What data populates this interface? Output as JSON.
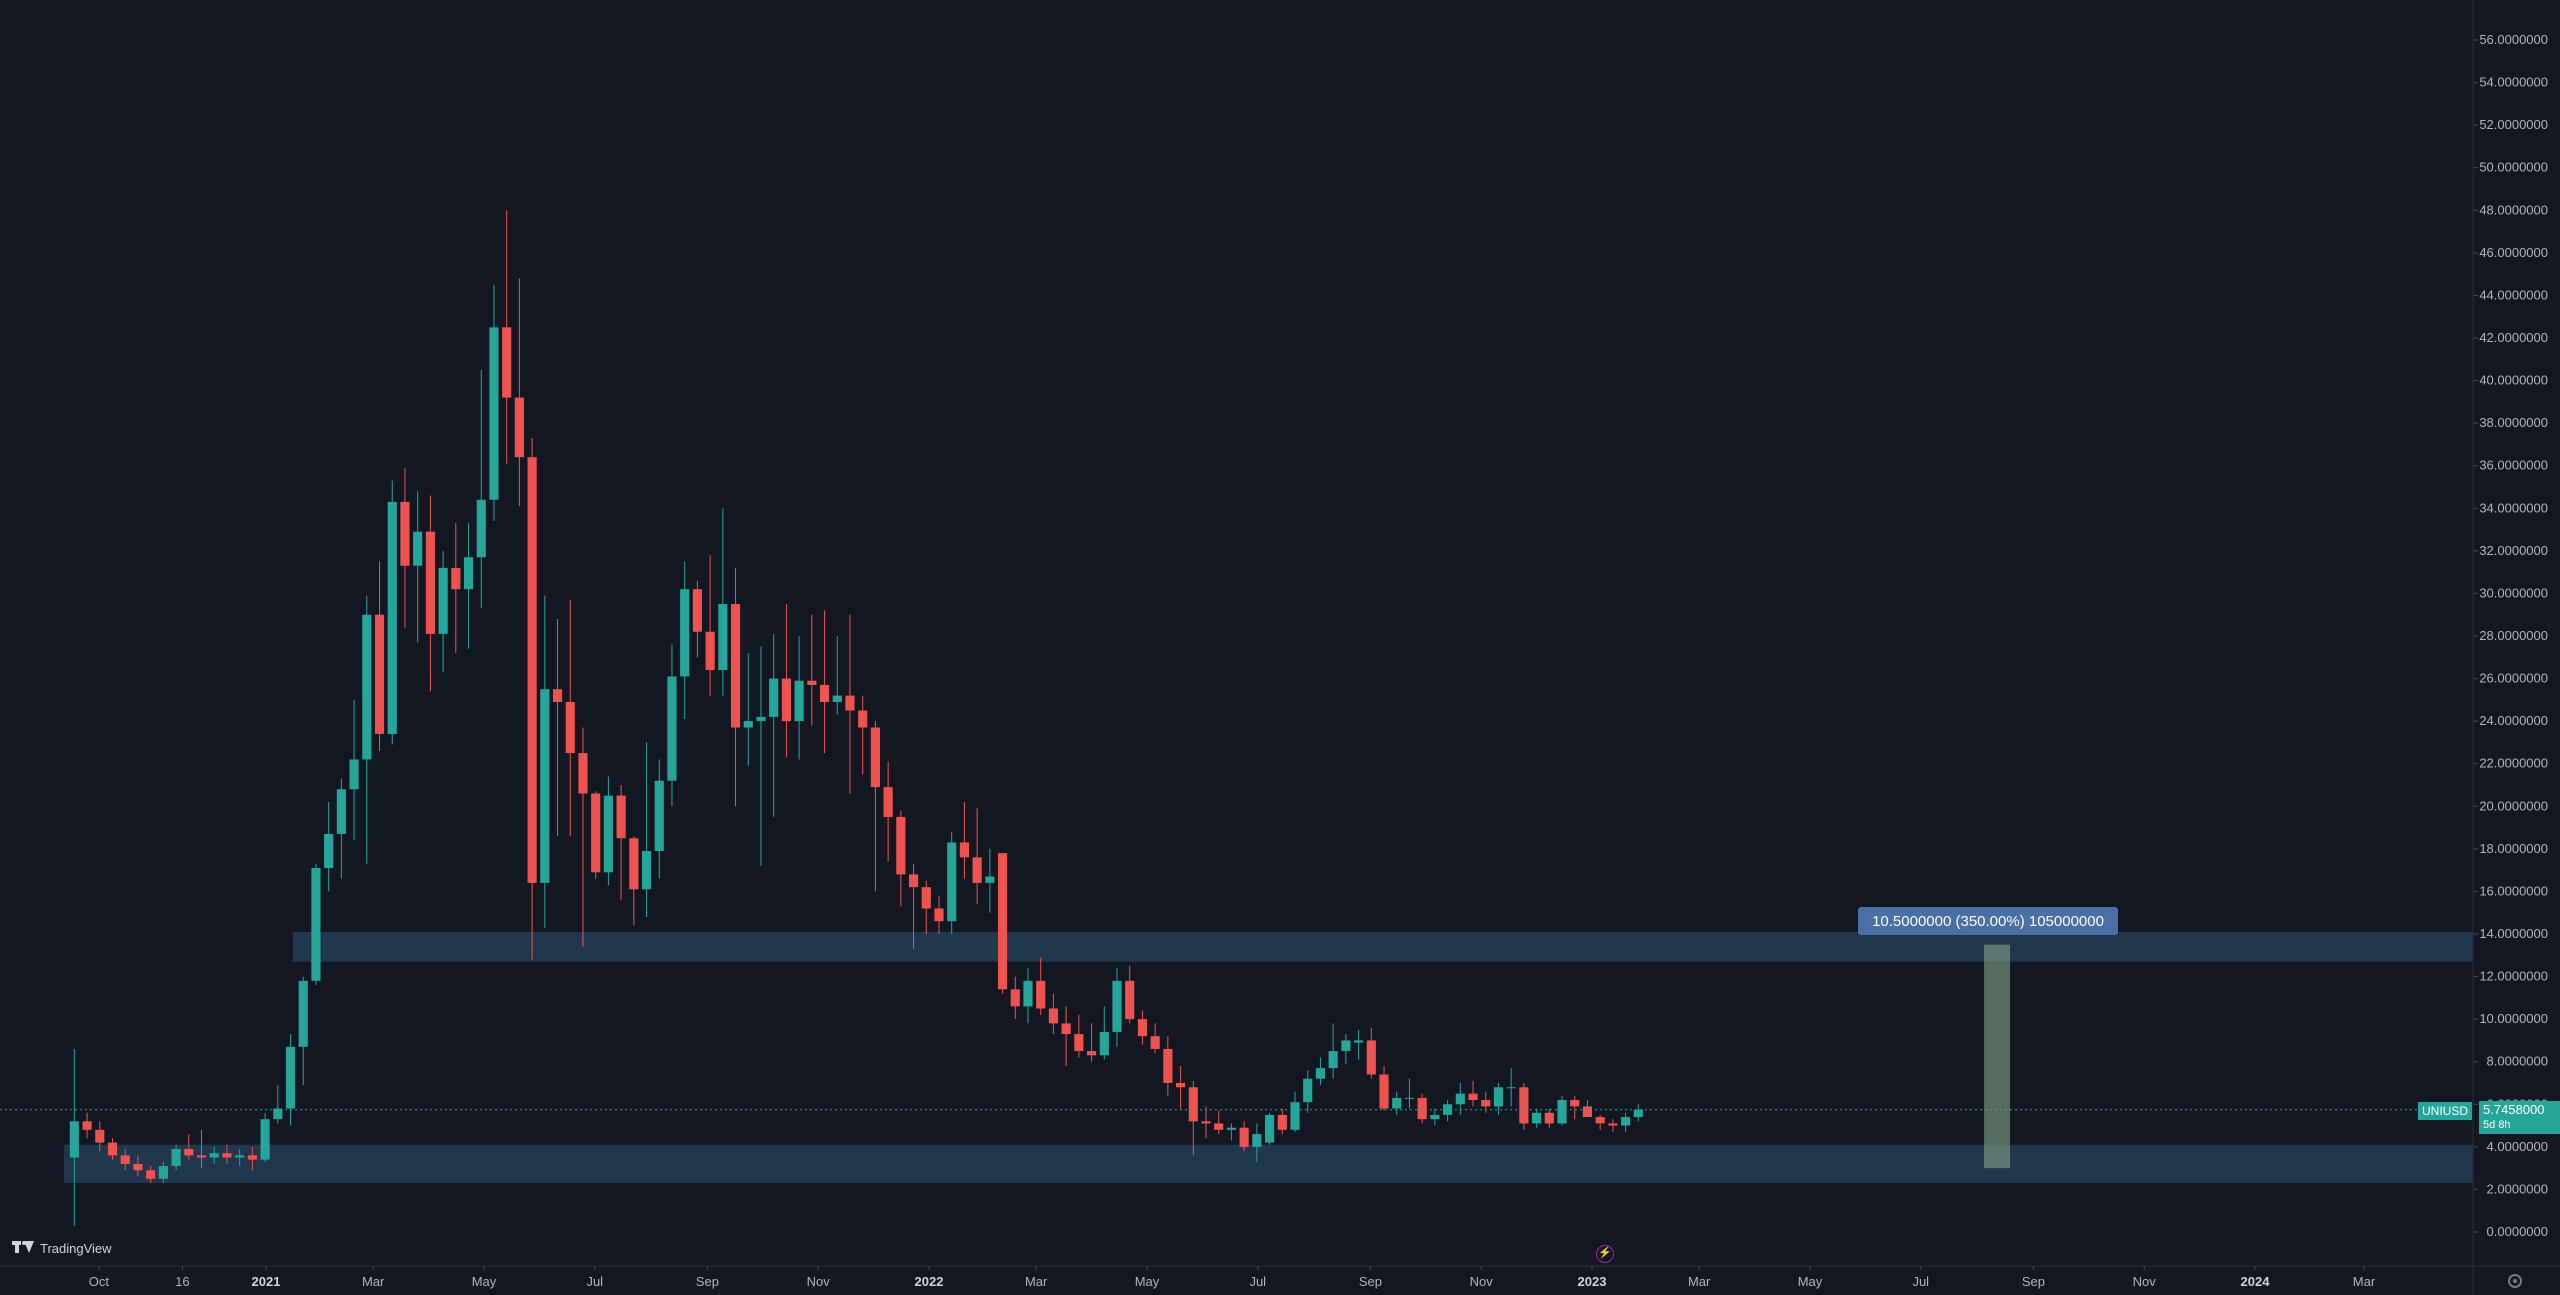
{
  "chart_data": {
    "type": "candlestick",
    "symbol": "UNIUSD",
    "ylim": [
      -1.5,
      58
    ],
    "y_ticks": [
      "0.0000000",
      "2.0000000",
      "4.0000000",
      "6.0000000",
      "8.0000000",
      "10.0000000",
      "12.0000000",
      "14.0000000",
      "16.0000000",
      "18.0000000",
      "20.0000000",
      "22.0000000",
      "24.0000000",
      "26.0000000",
      "28.0000000",
      "30.0000000",
      "32.0000000",
      "34.0000000",
      "36.0000000",
      "38.0000000",
      "40.0000000",
      "42.0000000",
      "44.0000000",
      "46.0000000",
      "48.0000000",
      "50.0000000",
      "52.0000000",
      "54.0000000",
      "56.0000000"
    ],
    "x_ticks": [
      {
        "label": "Oct",
        "x": "2020-10-01",
        "bold": false
      },
      {
        "label": "16",
        "x": "2020-11-16",
        "bold": false
      },
      {
        "label": "2021",
        "x": "2021-01-01",
        "bold": true
      },
      {
        "label": "Mar",
        "x": "2021-03-01",
        "bold": false
      },
      {
        "label": "May",
        "x": "2021-05-01",
        "bold": false
      },
      {
        "label": "Jul",
        "x": "2021-07-01",
        "bold": false
      },
      {
        "label": "Sep",
        "x": "2021-09-01",
        "bold": false
      },
      {
        "label": "Nov",
        "x": "2021-11-01",
        "bold": false
      },
      {
        "label": "2022",
        "x": "2022-01-01",
        "bold": true
      },
      {
        "label": "Mar",
        "x": "2022-03-01",
        "bold": false
      },
      {
        "label": "May",
        "x": "2022-05-01",
        "bold": false
      },
      {
        "label": "Jul",
        "x": "2022-07-01",
        "bold": false
      },
      {
        "label": "Sep",
        "x": "2022-09-01",
        "bold": false
      },
      {
        "label": "Nov",
        "x": "2022-11-01",
        "bold": false
      },
      {
        "label": "2023",
        "x": "2023-01-01",
        "bold": true
      },
      {
        "label": "Mar",
        "x": "2023-03-01",
        "bold": false
      },
      {
        "label": "May",
        "x": "2023-05-01",
        "bold": false
      },
      {
        "label": "Jul",
        "x": "2023-07-01",
        "bold": false
      },
      {
        "label": "Sep",
        "x": "2023-09-01",
        "bold": false
      },
      {
        "label": "Nov",
        "x": "2023-11-01",
        "bold": false
      },
      {
        "label": "2024",
        "x": "2024-01-01",
        "bold": true
      },
      {
        "label": "Mar",
        "x": "2024-03-01",
        "bold": false
      }
    ],
    "candles": [
      {
        "x": "2020-09-14",
        "o": 3.5,
        "h": 8.6,
        "l": 0.3,
        "c": 5.2
      },
      {
        "x": "2020-09-21",
        "o": 5.2,
        "h": 5.6,
        "l": 4.4,
        "c": 4.8
      },
      {
        "x": "2020-09-28",
        "o": 4.8,
        "h": 5.2,
        "l": 3.8,
        "c": 4.2
      },
      {
        "x": "2020-10-05",
        "o": 4.2,
        "h": 4.4,
        "l": 3.4,
        "c": 3.6
      },
      {
        "x": "2020-10-12",
        "o": 3.6,
        "h": 3.9,
        "l": 2.9,
        "c": 3.2
      },
      {
        "x": "2020-10-19",
        "o": 3.2,
        "h": 3.6,
        "l": 2.6,
        "c": 2.9
      },
      {
        "x": "2020-10-26",
        "o": 2.9,
        "h": 3.1,
        "l": 2.3,
        "c": 2.5
      },
      {
        "x": "2020-11-02",
        "o": 2.5,
        "h": 3.3,
        "l": 2.3,
        "c": 3.1
      },
      {
        "x": "2020-11-09",
        "o": 3.1,
        "h": 4.1,
        "l": 2.9,
        "c": 3.9
      },
      {
        "x": "2020-11-16",
        "o": 3.9,
        "h": 4.6,
        "l": 3.4,
        "c": 3.6
      },
      {
        "x": "2020-11-23",
        "o": 3.6,
        "h": 4.8,
        "l": 3.0,
        "c": 3.5
      },
      {
        "x": "2020-11-30",
        "o": 3.5,
        "h": 4.0,
        "l": 3.2,
        "c": 3.7
      },
      {
        "x": "2020-12-07",
        "o": 3.7,
        "h": 4.1,
        "l": 3.2,
        "c": 3.5
      },
      {
        "x": "2020-12-14",
        "o": 3.5,
        "h": 3.9,
        "l": 3.1,
        "c": 3.6
      },
      {
        "x": "2020-12-21",
        "o": 3.6,
        "h": 4.0,
        "l": 2.9,
        "c": 3.4
      },
      {
        "x": "2020-12-28",
        "o": 3.4,
        "h": 5.6,
        "l": 3.3,
        "c": 5.3
      },
      {
        "x": "2021-01-04",
        "o": 5.3,
        "h": 6.9,
        "l": 5.1,
        "c": 5.8
      },
      {
        "x": "2021-01-11",
        "o": 5.8,
        "h": 9.3,
        "l": 5.0,
        "c": 8.7
      },
      {
        "x": "2021-01-18",
        "o": 8.7,
        "h": 12.0,
        "l": 6.9,
        "c": 11.8
      },
      {
        "x": "2021-01-25",
        "o": 11.8,
        "h": 17.3,
        "l": 11.6,
        "c": 17.1
      },
      {
        "x": "2021-02-01",
        "o": 17.1,
        "h": 20.2,
        "l": 16.0,
        "c": 18.7
      },
      {
        "x": "2021-02-08",
        "o": 18.7,
        "h": 21.3,
        "l": 16.6,
        "c": 20.8
      },
      {
        "x": "2021-02-15",
        "o": 20.8,
        "h": 25.0,
        "l": 18.4,
        "c": 22.2
      },
      {
        "x": "2021-02-22",
        "o": 22.2,
        "h": 29.9,
        "l": 17.3,
        "c": 29.0
      },
      {
        "x": "2021-03-01",
        "o": 29.0,
        "h": 31.5,
        "l": 22.6,
        "c": 23.4
      },
      {
        "x": "2021-03-08",
        "o": 23.4,
        "h": 35.3,
        "l": 22.9,
        "c": 34.3
      },
      {
        "x": "2021-03-15",
        "o": 34.3,
        "h": 35.9,
        "l": 28.4,
        "c": 31.3
      },
      {
        "x": "2021-03-22",
        "o": 31.3,
        "h": 34.8,
        "l": 27.7,
        "c": 32.9
      },
      {
        "x": "2021-03-29",
        "o": 32.9,
        "h": 34.6,
        "l": 25.4,
        "c": 28.1
      },
      {
        "x": "2021-04-05",
        "o": 28.1,
        "h": 32.0,
        "l": 26.3,
        "c": 31.2
      },
      {
        "x": "2021-04-12",
        "o": 31.2,
        "h": 33.3,
        "l": 27.2,
        "c": 30.2
      },
      {
        "x": "2021-04-19",
        "o": 30.2,
        "h": 33.3,
        "l": 27.4,
        "c": 31.7
      },
      {
        "x": "2021-04-26",
        "o": 31.7,
        "h": 40.5,
        "l": 29.3,
        "c": 34.4
      },
      {
        "x": "2021-05-03",
        "o": 34.4,
        "h": 44.5,
        "l": 33.4,
        "c": 42.5
      },
      {
        "x": "2021-05-10",
        "o": 42.5,
        "h": 48.0,
        "l": 36.1,
        "c": 39.2
      },
      {
        "x": "2021-05-17",
        "o": 39.2,
        "h": 44.8,
        "l": 34.1,
        "c": 36.4
      },
      {
        "x": "2021-05-24",
        "o": 36.4,
        "h": 37.3,
        "l": 12.8,
        "c": 16.4
      },
      {
        "x": "2021-05-31",
        "o": 16.4,
        "h": 29.9,
        "l": 14.3,
        "c": 25.5
      },
      {
        "x": "2021-06-07",
        "o": 25.5,
        "h": 28.8,
        "l": 18.6,
        "c": 24.9
      },
      {
        "x": "2021-06-14",
        "o": 24.9,
        "h": 29.7,
        "l": 18.6,
        "c": 22.5
      },
      {
        "x": "2021-06-21",
        "o": 22.5,
        "h": 23.7,
        "l": 13.4,
        "c": 20.6
      },
      {
        "x": "2021-06-28",
        "o": 20.6,
        "h": 20.7,
        "l": 16.6,
        "c": 16.9
      },
      {
        "x": "2021-07-05",
        "o": 16.9,
        "h": 21.4,
        "l": 16.3,
        "c": 20.5
      },
      {
        "x": "2021-07-12",
        "o": 20.5,
        "h": 21.0,
        "l": 15.6,
        "c": 18.5
      },
      {
        "x": "2021-07-19",
        "o": 18.5,
        "h": 18.6,
        "l": 14.4,
        "c": 16.1
      },
      {
        "x": "2021-07-26",
        "o": 16.1,
        "h": 23.0,
        "l": 14.8,
        "c": 17.9
      },
      {
        "x": "2021-08-02",
        "o": 17.9,
        "h": 22.2,
        "l": 16.6,
        "c": 21.2
      },
      {
        "x": "2021-08-09",
        "o": 21.2,
        "h": 27.6,
        "l": 20.0,
        "c": 26.1
      },
      {
        "x": "2021-08-16",
        "o": 26.1,
        "h": 31.5,
        "l": 24.1,
        "c": 30.2
      },
      {
        "x": "2021-08-23",
        "o": 30.2,
        "h": 30.6,
        "l": 27.0,
        "c": 28.2
      },
      {
        "x": "2021-08-30",
        "o": 28.2,
        "h": 31.8,
        "l": 25.2,
        "c": 26.4
      },
      {
        "x": "2021-09-06",
        "o": 26.4,
        "h": 34.0,
        "l": 25.2,
        "c": 29.5
      },
      {
        "x": "2021-09-13",
        "o": 29.5,
        "h": 31.2,
        "l": 20.0,
        "c": 23.7
      },
      {
        "x": "2021-09-20",
        "o": 23.7,
        "h": 27.2,
        "l": 21.9,
        "c": 24.0
      },
      {
        "x": "2021-09-27",
        "o": 24.0,
        "h": 27.5,
        "l": 17.2,
        "c": 24.2
      },
      {
        "x": "2021-10-04",
        "o": 24.2,
        "h": 28.1,
        "l": 19.5,
        "c": 26.0
      },
      {
        "x": "2021-10-11",
        "o": 26.0,
        "h": 29.5,
        "l": 22.3,
        "c": 24.0
      },
      {
        "x": "2021-10-18",
        "o": 24.0,
        "h": 28.0,
        "l": 22.2,
        "c": 25.9
      },
      {
        "x": "2021-10-25",
        "o": 25.9,
        "h": 29.0,
        "l": 23.8,
        "c": 25.7
      },
      {
        "x": "2021-11-01",
        "o": 25.7,
        "h": 29.2,
        "l": 22.5,
        "c": 24.9
      },
      {
        "x": "2021-11-08",
        "o": 24.9,
        "h": 28.0,
        "l": 24.3,
        "c": 25.2
      },
      {
        "x": "2021-11-15",
        "o": 25.2,
        "h": 29.0,
        "l": 20.6,
        "c": 24.5
      },
      {
        "x": "2021-11-22",
        "o": 24.5,
        "h": 25.2,
        "l": 21.5,
        "c": 23.7
      },
      {
        "x": "2021-11-29",
        "o": 23.7,
        "h": 24.0,
        "l": 16.0,
        "c": 20.9
      },
      {
        "x": "2021-12-06",
        "o": 20.9,
        "h": 22.1,
        "l": 17.4,
        "c": 19.5
      },
      {
        "x": "2021-12-13",
        "o": 19.5,
        "h": 19.8,
        "l": 15.3,
        "c": 16.8
      },
      {
        "x": "2021-12-20",
        "o": 16.8,
        "h": 17.3,
        "l": 13.3,
        "c": 16.2
      },
      {
        "x": "2021-12-27",
        "o": 16.2,
        "h": 16.5,
        "l": 14.0,
        "c": 15.2
      },
      {
        "x": "2022-01-03",
        "o": 15.2,
        "h": 15.8,
        "l": 14.0,
        "c": 14.6
      },
      {
        "x": "2022-01-10",
        "o": 14.6,
        "h": 18.8,
        "l": 14.0,
        "c": 18.3
      },
      {
        "x": "2022-01-17",
        "o": 18.3,
        "h": 20.2,
        "l": 16.6,
        "c": 17.6
      },
      {
        "x": "2022-01-24",
        "o": 17.6,
        "h": 19.9,
        "l": 15.4,
        "c": 16.4
      },
      {
        "x": "2022-01-31",
        "o": 16.4,
        "h": 18.0,
        "l": 15.0,
        "c": 16.7
      },
      {
        "x": "2022-02-07",
        "o": 17.8,
        "h": 17.8,
        "l": 11.2,
        "c": 11.4
      },
      {
        "x": "2022-02-14",
        "o": 11.4,
        "h": 12.0,
        "l": 10.0,
        "c": 10.6
      },
      {
        "x": "2022-02-21",
        "o": 10.6,
        "h": 12.4,
        "l": 9.8,
        "c": 11.8
      },
      {
        "x": "2022-02-28",
        "o": 11.8,
        "h": 12.9,
        "l": 10.2,
        "c": 10.5
      },
      {
        "x": "2022-03-07",
        "o": 10.5,
        "h": 11.2,
        "l": 9.3,
        "c": 9.8
      },
      {
        "x": "2022-03-14",
        "o": 9.8,
        "h": 10.6,
        "l": 7.8,
        "c": 9.3
      },
      {
        "x": "2022-03-21",
        "o": 9.3,
        "h": 10.2,
        "l": 8.2,
        "c": 8.5
      },
      {
        "x": "2022-03-28",
        "o": 8.5,
        "h": 9.8,
        "l": 8.0,
        "c": 8.3
      },
      {
        "x": "2022-04-04",
        "o": 8.3,
        "h": 10.6,
        "l": 8.1,
        "c": 9.4
      },
      {
        "x": "2022-04-11",
        "o": 9.4,
        "h": 12.4,
        "l": 8.7,
        "c": 11.8
      },
      {
        "x": "2022-04-18",
        "o": 11.8,
        "h": 12.5,
        "l": 9.8,
        "c": 10.0
      },
      {
        "x": "2022-04-25",
        "o": 10.0,
        "h": 10.4,
        "l": 8.8,
        "c": 9.2
      },
      {
        "x": "2022-05-02",
        "o": 9.2,
        "h": 9.8,
        "l": 8.4,
        "c": 8.6
      },
      {
        "x": "2022-05-09",
        "o": 8.6,
        "h": 9.2,
        "l": 6.4,
        "c": 7.0
      },
      {
        "x": "2022-05-16",
        "o": 7.0,
        "h": 7.8,
        "l": 5.8,
        "c": 6.8
      },
      {
        "x": "2022-05-23",
        "o": 6.8,
        "h": 7.1,
        "l": 3.6,
        "c": 5.2
      },
      {
        "x": "2022-05-30",
        "o": 5.2,
        "h": 5.9,
        "l": 4.4,
        "c": 5.1
      },
      {
        "x": "2022-06-06",
        "o": 5.1,
        "h": 5.7,
        "l": 4.6,
        "c": 4.8
      },
      {
        "x": "2022-06-13",
        "o": 4.8,
        "h": 5.1,
        "l": 4.3,
        "c": 4.9
      },
      {
        "x": "2022-06-20",
        "o": 4.9,
        "h": 5.2,
        "l": 3.8,
        "c": 4.0
      },
      {
        "x": "2022-06-27",
        "o": 4.0,
        "h": 5.1,
        "l": 3.3,
        "c": 4.6
      },
      {
        "x": "2022-07-04",
        "o": 4.2,
        "h": 5.6,
        "l": 4.1,
        "c": 5.5
      },
      {
        "x": "2022-07-11",
        "o": 5.5,
        "h": 5.8,
        "l": 4.6,
        "c": 4.8
      },
      {
        "x": "2022-07-18",
        "o": 4.8,
        "h": 6.6,
        "l": 4.7,
        "c": 6.1
      },
      {
        "x": "2022-07-25",
        "o": 6.1,
        "h": 7.6,
        "l": 5.6,
        "c": 7.2
      },
      {
        "x": "2022-08-01",
        "o": 7.2,
        "h": 8.2,
        "l": 6.9,
        "c": 7.7
      },
      {
        "x": "2022-08-08",
        "o": 7.7,
        "h": 9.8,
        "l": 7.2,
        "c": 8.5
      },
      {
        "x": "2022-08-15",
        "o": 8.5,
        "h": 9.3,
        "l": 7.9,
        "c": 9.0
      },
      {
        "x": "2022-08-22",
        "o": 8.9,
        "h": 9.5,
        "l": 8.1,
        "c": 9.0
      },
      {
        "x": "2022-08-29",
        "o": 9.0,
        "h": 9.6,
        "l": 7.2,
        "c": 7.4
      },
      {
        "x": "2022-09-05",
        "o": 7.4,
        "h": 7.8,
        "l": 5.7,
        "c": 5.8
      },
      {
        "x": "2022-09-12",
        "o": 5.8,
        "h": 6.6,
        "l": 5.5,
        "c": 6.3
      },
      {
        "x": "2022-09-19",
        "o": 6.3,
        "h": 7.2,
        "l": 5.8,
        "c": 6.3
      },
      {
        "x": "2022-09-26",
        "o": 6.3,
        "h": 6.5,
        "l": 5.1,
        "c": 5.3
      },
      {
        "x": "2022-10-03",
        "o": 5.3,
        "h": 5.8,
        "l": 5.0,
        "c": 5.5
      },
      {
        "x": "2022-10-10",
        "o": 5.5,
        "h": 6.2,
        "l": 5.2,
        "c": 6.0
      },
      {
        "x": "2022-10-17",
        "o": 6.0,
        "h": 7.0,
        "l": 5.5,
        "c": 6.5
      },
      {
        "x": "2022-10-24",
        "o": 6.5,
        "h": 7.1,
        "l": 5.9,
        "c": 6.2
      },
      {
        "x": "2022-10-31",
        "o": 6.2,
        "h": 6.6,
        "l": 5.6,
        "c": 5.9
      },
      {
        "x": "2022-11-07",
        "o": 5.9,
        "h": 7.0,
        "l": 5.5,
        "c": 6.8
      },
      {
        "x": "2022-11-14",
        "o": 6.8,
        "h": 7.7,
        "l": 5.9,
        "c": 6.8
      },
      {
        "x": "2022-11-21",
        "o": 6.8,
        "h": 7.0,
        "l": 4.8,
        "c": 5.1
      },
      {
        "x": "2022-11-28",
        "o": 5.1,
        "h": 5.8,
        "l": 4.9,
        "c": 5.6
      },
      {
        "x": "2022-12-05",
        "o": 5.6,
        "h": 5.8,
        "l": 4.9,
        "c": 5.1
      },
      {
        "x": "2022-12-12",
        "o": 5.1,
        "h": 6.4,
        "l": 5.0,
        "c": 6.2
      },
      {
        "x": "2022-12-19",
        "o": 6.2,
        "h": 6.4,
        "l": 5.3,
        "c": 5.9
      },
      {
        "x": "2022-12-26",
        "o": 5.9,
        "h": 6.2,
        "l": 5.4,
        "c": 5.4
      },
      {
        "x": "2023-01-02",
        "o": 5.4,
        "h": 5.5,
        "l": 4.8,
        "c": 5.1
      },
      {
        "x": "2023-01-09",
        "o": 5.1,
        "h": 5.3,
        "l": 4.7,
        "c": 5.0
      },
      {
        "x": "2023-01-16",
        "o": 5.0,
        "h": 5.6,
        "l": 4.7,
        "c": 5.4
      },
      {
        "x": "2023-01-23",
        "o": 5.4,
        "h": 6.0,
        "l": 5.2,
        "c": 5.75
      }
    ],
    "zones": [
      {
        "name": "resistance-zone",
        "start": "2021-01-18",
        "y_low": 12.7,
        "y_high": 14.1
      },
      {
        "name": "support-zone",
        "start": "2020-09-14",
        "y_low": 2.3,
        "y_high": 4.1
      }
    ],
    "measure": {
      "x": "2023-08-12",
      "y_from": 3.0,
      "y_to": 13.5,
      "label": "10.5000000 (350.00%) 105000000"
    },
    "last_price": {
      "value": 5.7458,
      "label": "5.7458000",
      "countdown": "5d 8h"
    }
  }
}
